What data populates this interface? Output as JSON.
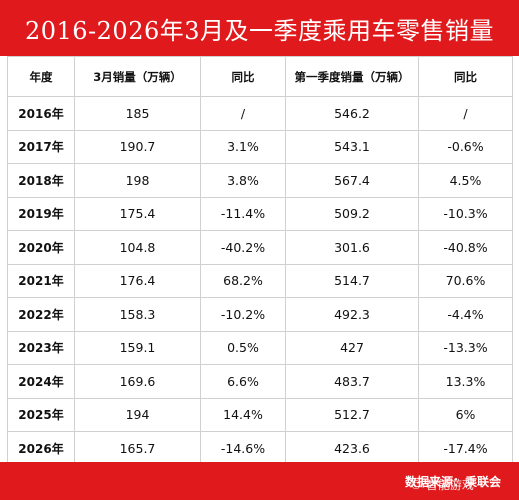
{
  "title": "2016-2026年3月及一季度乘用车零售销量",
  "headers": [
    "年度",
    "3月销量（万辆）",
    "同比",
    "第一季度销量（万辆）",
    "同比"
  ],
  "rows": [
    [
      "2016年",
      "185",
      "/",
      "546.2",
      "/"
    ],
    [
      "2017年",
      "190.7",
      "3.1%",
      "543.1",
      "-0.6%"
    ],
    [
      "2018年",
      "198",
      "3.8%",
      "567.4",
      "4.5%"
    ],
    [
      "2019年",
      "175.4",
      "-11.4%",
      "509.2",
      "-10.3%"
    ],
    [
      "2020年",
      "104.8",
      "-40.2%",
      "301.6",
      "-40.8%"
    ],
    [
      "2021年",
      "176.4",
      "68.2%",
      "514.7",
      "70.6%"
    ],
    [
      "2022年",
      "158.3",
      "-10.2%",
      "492.3",
      "-4.4%"
    ],
    [
      "2023年",
      "159.1",
      "0.5%",
      "427",
      "-13.3%"
    ],
    [
      "2024年",
      "169.6",
      "6.6%",
      "483.7",
      "13.3%"
    ],
    [
      "2025年",
      "194",
      "14.4%",
      "512.7",
      "6%"
    ],
    [
      "2026年",
      "165.7",
      "-14.6%",
      "423.6",
      "-17.4%"
    ]
  ],
  "footer": "数据来源：乘联会",
  "watermark": "© 智能游戏",
  "colors": {
    "brand": "#e0191c",
    "border": "#d0d0d0",
    "text": "#111111"
  }
}
